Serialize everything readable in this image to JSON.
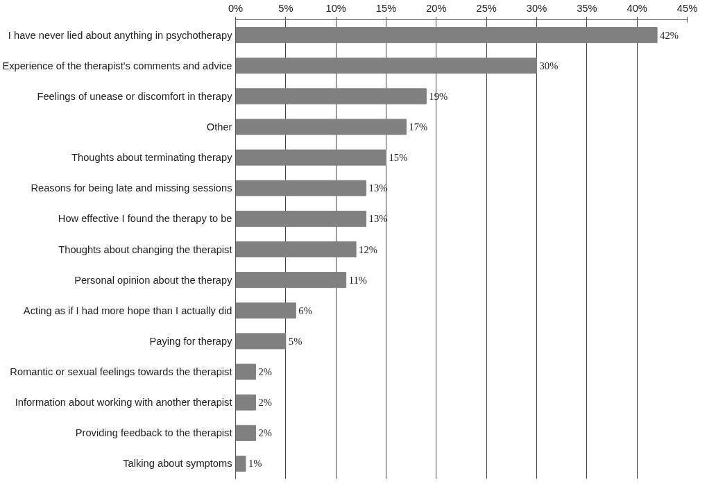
{
  "chart_data": {
    "type": "bar",
    "orientation": "horizontal",
    "categories": [
      "I have never lied about anything in psychotherapy",
      "Experience of the therapist's comments and advice",
      "Feelings of unease or discomfort in therapy",
      "Other",
      "Thoughts about terminating therapy",
      "Reasons for being late and missing sessions",
      "How effective I found the therapy to be",
      "Thoughts about changing the therapist",
      "Personal opinion about the therapy",
      "Acting as if I had more hope than I actually did",
      "Paying for therapy",
      "Romantic or sexual feelings towards the therapist",
      "Information about working with another therapist",
      "Providing feedback to the therapist",
      "Talking about symptoms"
    ],
    "values": [
      42,
      30,
      19,
      17,
      15,
      13,
      13,
      12,
      11,
      6,
      5,
      2,
      2,
      2,
      1
    ],
    "value_labels": [
      "42%",
      "30%",
      "19%",
      "17%",
      "15%",
      "13%",
      "13%",
      "12%",
      "11%",
      "6%",
      "5%",
      "2%",
      "2%",
      "2%",
      "1%"
    ],
    "color": "#808080",
    "xlim": [
      0,
      45
    ],
    "xticks": [
      {
        "value": 0,
        "label": "0%"
      },
      {
        "value": 5,
        "label": "5%"
      },
      {
        "value": 10,
        "label": "10%"
      },
      {
        "value": 15,
        "label": "15%"
      },
      {
        "value": 20,
        "label": "20%"
      },
      {
        "value": 25,
        "label": "25%"
      },
      {
        "value": 30,
        "label": "30%"
      },
      {
        "value": 35,
        "label": "35%"
      },
      {
        "value": 40,
        "label": "40%"
      },
      {
        "value": 45,
        "label": "45%"
      }
    ],
    "grid": "x"
  }
}
